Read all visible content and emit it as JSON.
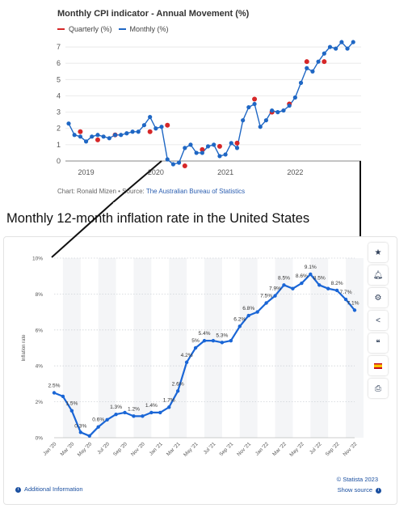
{
  "top": {
    "title": "Monthly CPI indicator - Annual Movement  (%)",
    "legend": [
      {
        "label": "Quarterly (%)",
        "color": "#d62728"
      },
      {
        "label": "Monthly (%)",
        "color": "#1f67c4"
      }
    ],
    "source_prefix": "Chart: Ronald Mizen • Source: ",
    "source_link": "The Australian Bureau of Statistics"
  },
  "heading": "Monthly 12-month inflation rate in the United States",
  "footer": {
    "additional_info": "Additional Information",
    "credit": "© Statista 2023",
    "show_source": "Show source"
  },
  "toolbar": [
    "star-icon",
    "bell-icon",
    "gear-icon",
    "share-icon",
    "quote-icon",
    "flag-spain-icon",
    "print-icon"
  ],
  "chart_data": [
    {
      "type": "line",
      "title": "Monthly CPI indicator - Annual Movement  (%)",
      "ylim": [
        0,
        7.5
      ],
      "xlim": [
        2018.75,
        2022.9
      ],
      "yticks": [
        0,
        1,
        2,
        3,
        4,
        5,
        6,
        7
      ],
      "xticks": [
        {
          "value": 2019,
          "label": "2019"
        },
        {
          "value": 2020,
          "label": "2020"
        },
        {
          "value": 2021,
          "label": "2021"
        },
        {
          "value": 2022,
          "label": "2022"
        }
      ],
      "grid": "horizontal",
      "series": [
        {
          "name": "Monthly (%)",
          "color": "#1f67c4",
          "line": true,
          "points": [
            [
              2018.75,
              2.3
            ],
            [
              2018.833,
              1.6
            ],
            [
              2018.917,
              1.5
            ],
            [
              2019.0,
              1.2
            ],
            [
              2019.083,
              1.5
            ],
            [
              2019.167,
              1.6
            ],
            [
              2019.25,
              1.5
            ],
            [
              2019.333,
              1.4
            ],
            [
              2019.417,
              1.6
            ],
            [
              2019.5,
              1.6
            ],
            [
              2019.583,
              1.7
            ],
            [
              2019.667,
              1.8
            ],
            [
              2019.75,
              1.8
            ],
            [
              2019.833,
              2.2
            ],
            [
              2019.917,
              2.7
            ],
            [
              2020.0,
              2.0
            ],
            [
              2020.083,
              2.1
            ],
            [
              2020.167,
              0.1
            ],
            [
              2020.25,
              -0.2
            ],
            [
              2020.333,
              -0.1
            ],
            [
              2020.417,
              0.8
            ],
            [
              2020.5,
              1.0
            ],
            [
              2020.583,
              0.5
            ],
            [
              2020.667,
              0.5
            ],
            [
              2020.75,
              0.9
            ],
            [
              2020.833,
              1.0
            ],
            [
              2020.917,
              0.3
            ],
            [
              2021.0,
              0.4
            ],
            [
              2021.083,
              1.1
            ],
            [
              2021.167,
              0.8
            ],
            [
              2021.25,
              2.5
            ],
            [
              2021.333,
              3.3
            ],
            [
              2021.417,
              3.5
            ],
            [
              2021.5,
              2.1
            ],
            [
              2021.583,
              2.5
            ],
            [
              2021.667,
              3.1
            ],
            [
              2021.75,
              3.0
            ],
            [
              2021.833,
              3.1
            ],
            [
              2021.917,
              3.4
            ],
            [
              2022.0,
              3.9
            ],
            [
              2022.083,
              4.8
            ],
            [
              2022.167,
              5.7
            ],
            [
              2022.25,
              5.5
            ],
            [
              2022.333,
              6.1
            ],
            [
              2022.417,
              6.6
            ],
            [
              2022.5,
              7.0
            ],
            [
              2022.583,
              6.9
            ],
            [
              2022.667,
              7.3
            ],
            [
              2022.75,
              6.9
            ],
            [
              2022.833,
              7.3
            ]
          ]
        },
        {
          "name": "Quarterly (%)",
          "color": "#d62728",
          "line": false,
          "points": [
            [
              2018.917,
              1.8
            ],
            [
              2019.167,
              1.3
            ],
            [
              2019.417,
              1.6
            ],
            [
              2019.917,
              1.8
            ],
            [
              2020.167,
              2.2
            ],
            [
              2020.417,
              -0.3
            ],
            [
              2020.667,
              0.7
            ],
            [
              2020.917,
              0.9
            ],
            [
              2021.167,
              1.1
            ],
            [
              2021.417,
              3.8
            ],
            [
              2021.667,
              3.0
            ],
            [
              2021.917,
              3.5
            ],
            [
              2022.167,
              6.1
            ],
            [
              2022.417,
              6.1
            ]
          ]
        }
      ]
    },
    {
      "type": "line",
      "title": "Monthly 12-month inflation rate in the United States",
      "ylabel": "Inflation rate",
      "ylim": [
        0,
        10
      ],
      "yticks": [
        {
          "value": 0,
          "label": "0%"
        },
        {
          "value": 2,
          "label": "2%"
        },
        {
          "value": 4,
          "label": "4%"
        },
        {
          "value": 6,
          "label": "6%"
        },
        {
          "value": 8,
          "label": "8%"
        },
        {
          "value": 10,
          "label": "10%"
        }
      ],
      "categories": [
        "Jan '20",
        "Feb '20",
        "Mar '20",
        "Apr '20",
        "May '20",
        "Jun '20",
        "Jul '20",
        "Aug '20",
        "Sep '20",
        "Oct '20",
        "Nov '20",
        "Dec '20",
        "Jan '21",
        "Feb '21",
        "Mar '21",
        "Apr '21",
        "May '21",
        "Jun '21",
        "Jul '21",
        "Aug '21",
        "Sep '21",
        "Oct '21",
        "Nov '21",
        "Dec '21",
        "Jan '22",
        "Feb '22",
        "Mar '22",
        "Apr '22",
        "May '22",
        "Jun '22",
        "Jul '22",
        "Aug '22",
        "Sep '22",
        "Oct '22",
        "Nov '22"
      ],
      "tick_categories": [
        "Jan '20",
        "Mar '20",
        "May '20",
        "Jul '20",
        "Sep '20",
        "Nov '20",
        "Jan '21",
        "Mar '21",
        "May '21",
        "Jul '21",
        "Sep '21",
        "Nov '21",
        "Jan '22",
        "Mar '22",
        "May '22",
        "Jul '22",
        "Sep '22",
        "Nov '22"
      ],
      "values": [
        2.5,
        2.3,
        1.5,
        0.3,
        0.1,
        0.6,
        1.0,
        1.3,
        1.4,
        1.2,
        1.2,
        1.4,
        1.4,
        1.7,
        2.6,
        4.2,
        5.0,
        5.4,
        5.4,
        5.3,
        5.4,
        6.2,
        6.8,
        7.0,
        7.5,
        7.9,
        8.5,
        8.3,
        8.6,
        9.1,
        8.5,
        8.3,
        8.2,
        7.7,
        7.1
      ],
      "data_labels": [
        {
          "index": 0,
          "label": "2.5%"
        },
        {
          "index": 2,
          "label": "1.5%"
        },
        {
          "index": 3,
          "label": "0.3%"
        },
        {
          "index": 5,
          "label": "0.6%"
        },
        {
          "index": 7,
          "label": "1.3%"
        },
        {
          "index": 9,
          "label": "1.2%"
        },
        {
          "index": 11,
          "label": "1.4%"
        },
        {
          "index": 13,
          "label": "1.7%"
        },
        {
          "index": 14,
          "label": "2.6%"
        },
        {
          "index": 15,
          "label": "4.2%"
        },
        {
          "index": 16,
          "label": "5%"
        },
        {
          "index": 17,
          "label": "5.4%"
        },
        {
          "index": 19,
          "label": "5.3%"
        },
        {
          "index": 21,
          "label": "6.2%"
        },
        {
          "index": 22,
          "label": "6.8%"
        },
        {
          "index": 24,
          "label": "7.5%"
        },
        {
          "index": 25,
          "label": "7.9%"
        },
        {
          "index": 26,
          "label": "8.5%"
        },
        {
          "index": 28,
          "label": "8.6%"
        },
        {
          "index": 29,
          "label": "9.1%"
        },
        {
          "index": 30,
          "label": "8.5%"
        },
        {
          "index": 32,
          "label": "8.2%"
        },
        {
          "index": 33,
          "label": "7.7%"
        },
        {
          "index": 34,
          "label": "7.1%"
        }
      ],
      "color": "#1a66d6",
      "grid": "horizontal dotted, alternating vertical bands"
    }
  ]
}
